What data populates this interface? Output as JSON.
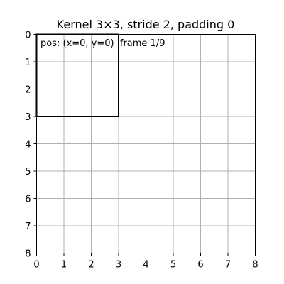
{
  "chart_data": {
    "type": "heatmap",
    "title": "Kernel 3×3, stride 2, padding 0",
    "xlabel": "",
    "ylabel": "",
    "x_ticks": [
      "0",
      "1",
      "2",
      "3",
      "4",
      "5",
      "6",
      "7",
      "8"
    ],
    "y_ticks": [
      "0",
      "1",
      "2",
      "3",
      "4",
      "5",
      "6",
      "7",
      "8"
    ],
    "xlim": [
      0,
      8
    ],
    "ylim": [
      8,
      0
    ],
    "y_inverted": true,
    "grid": true,
    "grid_size": 8,
    "kernel": {
      "x": 0,
      "y": 0,
      "size": 3
    },
    "annotation": "pos: (x=0, y=0)  frame 1/9",
    "colors": {
      "grid": "#b0b0b0",
      "axes": "#000000",
      "kernel": "#000000",
      "background": "#ffffff"
    }
  }
}
